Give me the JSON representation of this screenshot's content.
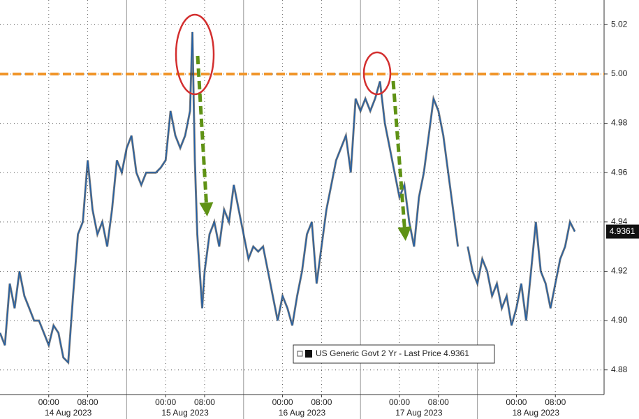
{
  "chart_data": {
    "type": "line",
    "x": [
      -10,
      -9,
      -8,
      -7,
      -6,
      -5,
      -4,
      -3,
      -2,
      -1,
      0,
      1,
      2,
      3,
      4,
      5,
      6,
      7,
      8,
      9,
      10,
      11,
      12,
      13,
      14,
      15,
      16,
      17,
      18,
      19,
      20,
      21,
      22,
      23,
      24,
      25,
      26,
      27,
      28,
      29,
      29.5,
      30,
      30.5,
      31,
      31.5,
      32,
      33,
      34,
      35,
      36,
      37,
      38,
      39,
      40,
      41,
      42,
      43,
      44,
      45,
      46,
      47,
      48,
      49,
      50,
      51,
      52,
      53,
      54,
      55,
      56,
      57,
      58,
      59,
      60,
      61,
      62,
      63,
      64,
      65,
      66,
      67,
      68,
      69,
      70,
      71,
      72,
      73,
      74,
      75,
      76,
      77,
      78,
      79,
      80,
      81,
      82,
      83,
      84,
      85,
      86,
      87,
      88,
      89,
      90,
      91,
      92,
      93,
      94,
      95,
      96,
      97,
      98,
      99,
      100,
      101,
      102,
      103,
      104,
      105,
      106,
      107,
      108
    ],
    "series": [
      {
        "name": "US Generic Govt 2 Yr - Last Price 4.9361",
        "color": "#1f5fa8",
        "values": [
          4.895,
          4.89,
          4.915,
          4.905,
          4.92,
          4.91,
          4.905,
          4.9,
          4.9,
          4.895,
          4.89,
          4.898,
          4.895,
          4.885,
          4.883,
          4.91,
          4.935,
          4.94,
          4.965,
          4.945,
          4.935,
          4.94,
          4.93,
          4.945,
          4.965,
          4.96,
          4.97,
          4.975,
          4.96,
          4.955,
          4.96,
          4.96,
          4.96,
          4.962,
          4.965,
          4.985,
          4.975,
          4.97,
          4.975,
          4.985,
          5.017,
          4.965,
          4.935,
          4.92,
          4.905,
          4.92,
          4.935,
          4.94,
          4.93,
          4.945,
          4.94,
          4.955,
          4.945,
          4.935,
          4.925,
          4.93,
          4.928,
          4.93,
          4.92,
          4.91,
          4.9,
          4.91,
          4.905,
          4.898,
          4.91,
          4.92,
          4.935,
          4.94,
          4.915,
          4.93,
          4.945,
          4.955,
          4.965,
          4.97,
          4.975,
          4.96,
          4.99,
          4.985,
          4.99,
          4.985,
          4.99,
          4.997,
          4.98,
          4.97,
          4.96,
          4.95,
          4.955,
          4.94,
          4.93,
          4.95,
          4.96,
          4.975,
          4.99,
          4.985,
          4.975,
          4.96,
          4.945,
          4.93,
          null,
          4.93,
          4.92,
          4.915,
          4.925,
          4.92,
          4.91,
          4.915,
          4.905,
          4.91,
          4.898,
          4.905,
          4.915,
          4.9,
          4.92,
          4.94,
          4.92,
          4.915,
          4.905,
          4.915,
          4.925,
          4.93,
          4.94,
          4.9361
        ]
      }
    ],
    "xlim": [
      -10,
      114
    ],
    "xticks": [
      {
        "value": 0,
        "label": "00:00"
      },
      {
        "value": 8,
        "label": "08:00"
      },
      {
        "value": 24,
        "label": "00:00"
      },
      {
        "value": 32,
        "label": "08:00"
      },
      {
        "value": 48,
        "label": "00:00"
      },
      {
        "value": 56,
        "label": "08:00"
      },
      {
        "value": 72,
        "label": "00:00"
      },
      {
        "value": 80,
        "label": "08:00"
      },
      {
        "value": 96,
        "label": "00:00"
      },
      {
        "value": 104,
        "label": "08:00"
      }
    ],
    "date_labels": [
      {
        "value": 4,
        "label": "14 Aug 2023"
      },
      {
        "value": 28,
        "label": "15 Aug 2023"
      },
      {
        "value": 52,
        "label": "16 Aug 2023"
      },
      {
        "value": 76,
        "label": "17 Aug 2023"
      },
      {
        "value": 100,
        "label": "18 Aug 2023"
      }
    ],
    "ylim": [
      4.87,
      5.03
    ],
    "yticks": [
      4.88,
      {
        "value": 4.9,
        "label": "4.90"
      },
      4.92,
      4.94,
      4.96,
      4.98,
      {
        "value": 5.0,
        "label": "5.00"
      },
      5.02
    ],
    "reference_line": {
      "value": 5.0,
      "color": "#f0952a"
    },
    "grid": true
  }
}
